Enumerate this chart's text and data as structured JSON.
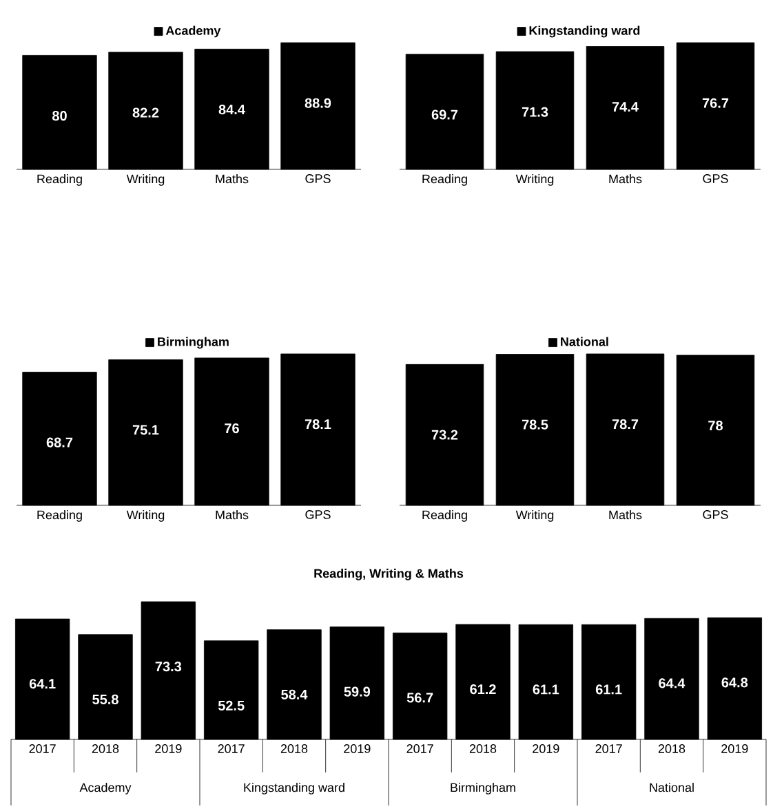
{
  "chart_data": [
    {
      "type": "bar",
      "categories": [
        "Reading",
        "Writing",
        "Maths",
        "GPS"
      ],
      "series": [
        {
          "name": "Academy",
          "color": "#000000",
          "values": [
            80,
            82.2,
            84.4,
            88.9
          ]
        }
      ],
      "data_labels": true,
      "legend": "top"
    },
    {
      "type": "bar",
      "categories": [
        "Reading",
        "Writing",
        "Maths",
        "GPS"
      ],
      "series": [
        {
          "name": "Kingstanding ward",
          "color": "#000000",
          "values": [
            69.7,
            71.3,
            74.4,
            76.7
          ]
        }
      ],
      "data_labels": true,
      "legend": "top"
    },
    {
      "type": "bar",
      "categories": [
        "Reading",
        "Writing",
        "Maths",
        "GPS"
      ],
      "series": [
        {
          "name": "Birmingham",
          "color": "#000000",
          "values": [
            68.7,
            75.1,
            76,
            78.1
          ]
        }
      ],
      "data_labels": true,
      "legend": "top"
    },
    {
      "type": "bar",
      "categories": [
        "Reading",
        "Writing",
        "Maths",
        "GPS"
      ],
      "series": [
        {
          "name": "National",
          "color": "#000000",
          "values": [
            73.2,
            78.5,
            78.7,
            78
          ]
        }
      ],
      "data_labels": true,
      "legend": "top"
    },
    {
      "type": "bar",
      "title": "Reading, Writing & Maths",
      "categories": [
        "2017",
        "2018",
        "2019",
        "2017",
        "2018",
        "2019",
        "2017",
        "2018",
        "2019",
        "2017",
        "2018",
        "2019"
      ],
      "values": [
        64.1,
        55.8,
        73.3,
        52.5,
        58.4,
        59.9,
        56.7,
        61.2,
        61.1,
        61.1,
        64.4,
        64.8
      ],
      "color": "#000000",
      "data_labels": true,
      "annotations": [
        "Academy",
        "Kingstanding ward",
        "Birmingham",
        "National"
      ]
    }
  ]
}
